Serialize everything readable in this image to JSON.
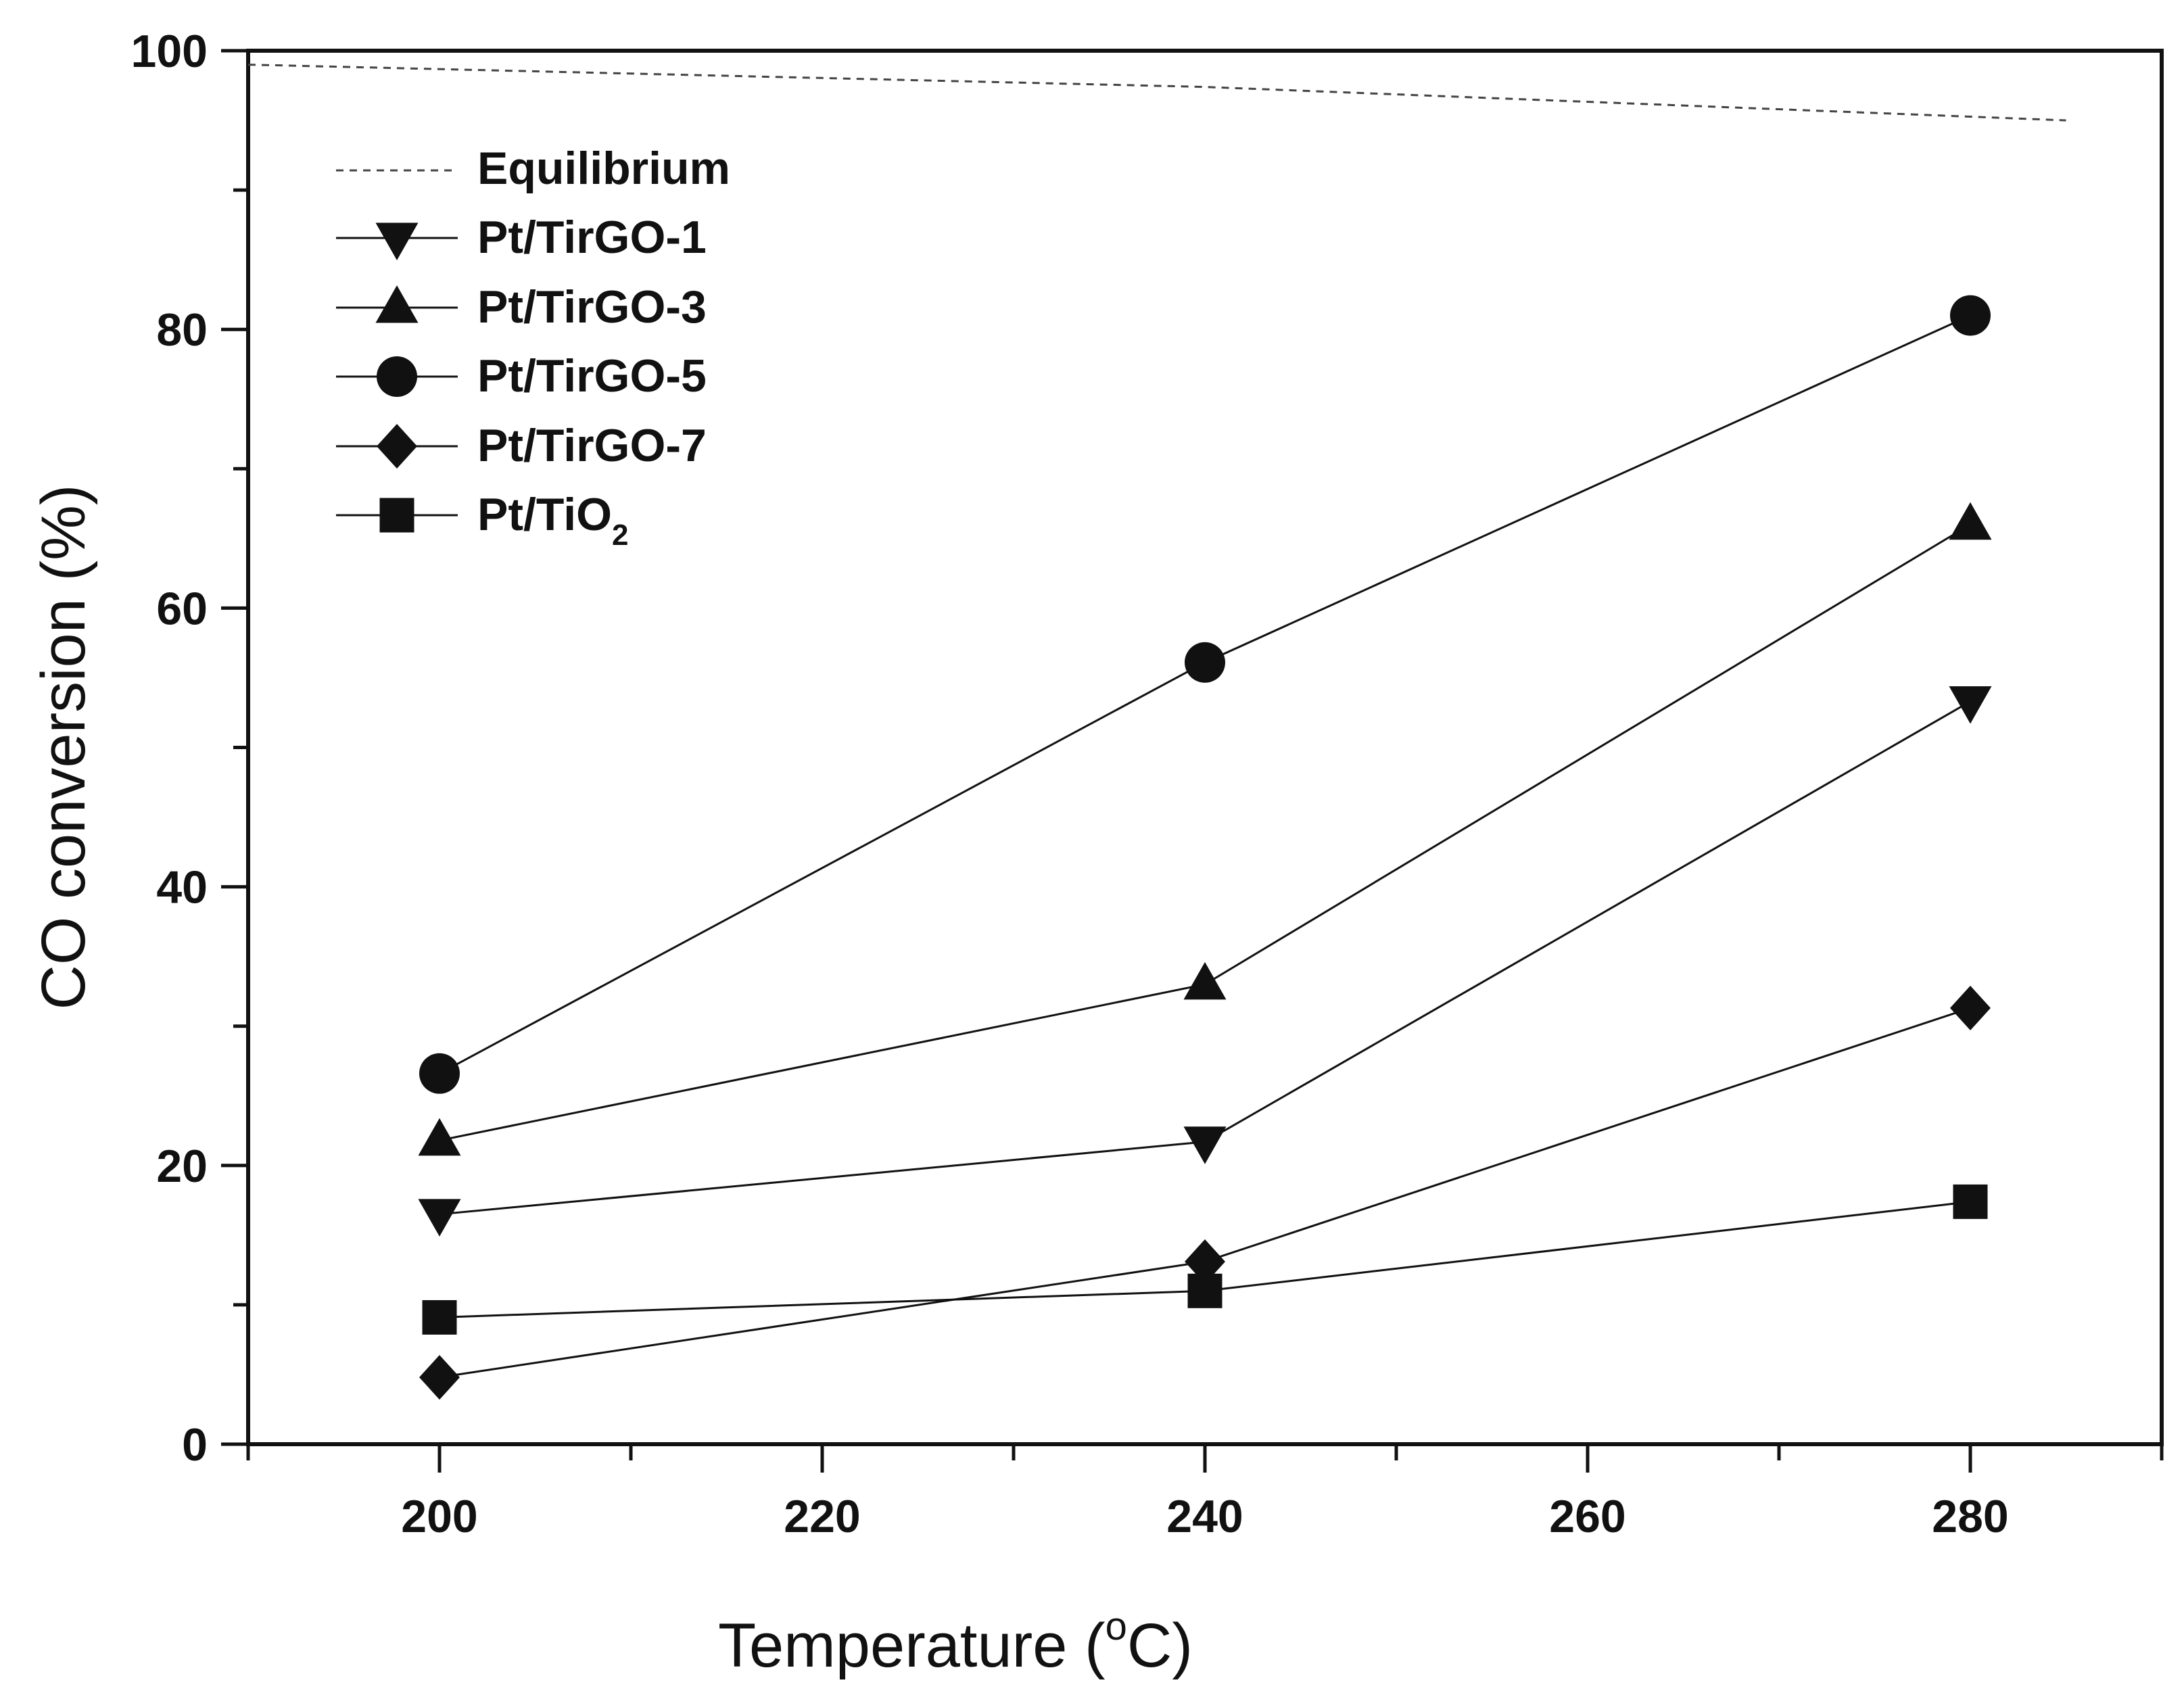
{
  "chart_data": {
    "type": "line",
    "title": "",
    "xlabel": "Temperature",
    "xlabel_unit_sup": "o",
    "xlabel_unit": "C",
    "ylabel": "CO conversion (%)",
    "xlim": [
      190,
      290
    ],
    "ylim": [
      0,
      100
    ],
    "xticks": [
      "200",
      "220",
      "240",
      "260",
      "280"
    ],
    "yticks": [
      "0",
      "20",
      "40",
      "60",
      "80",
      "100"
    ],
    "legend_position": "top-left",
    "equilibrium": {
      "name": "Equilibrium",
      "x": [
        190,
        240,
        285
      ],
      "values": [
        99,
        97.4,
        95
      ]
    },
    "series": [
      {
        "name": "Pt/TirGO-1",
        "name_sub": "",
        "marker": "triangle-down",
        "x": [
          200,
          240,
          280
        ],
        "values": [
          16.5,
          21.7,
          53.3
        ]
      },
      {
        "name": "Pt/TirGO-3",
        "name_sub": "",
        "marker": "triangle-up",
        "x": [
          200,
          240,
          280
        ],
        "values": [
          21.8,
          33,
          66
        ]
      },
      {
        "name": "Pt/TirGO-5",
        "name_sub": "",
        "marker": "circle",
        "x": [
          200,
          240,
          280
        ],
        "values": [
          26.6,
          56.1,
          81
        ]
      },
      {
        "name": "Pt/TirGO-7",
        "name_sub": "",
        "marker": "diamond",
        "x": [
          200,
          240,
          280
        ],
        "values": [
          4.8,
          13.1,
          31.3
        ]
      },
      {
        "name": "Pt/TiO",
        "name_sub": "2",
        "marker": "square",
        "x": [
          200,
          240,
          280
        ],
        "values": [
          9.1,
          11,
          17.4
        ]
      }
    ]
  }
}
